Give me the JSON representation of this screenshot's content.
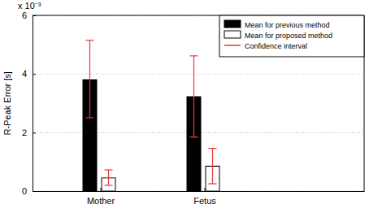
{
  "chart_data": {
    "type": "bar",
    "y_label": "R-Peak Error [s]",
    "annotations": [
      "x 10⁻³"
    ],
    "categories": [
      "Mother",
      "Fetus"
    ],
    "series": [
      {
        "name": "Mean for previous method",
        "color": "#000000",
        "values": [
          0.0038,
          0.00322
        ],
        "ci_lower": [
          0.0025,
          0.00185
        ],
        "ci_upper": [
          0.00515,
          0.00462
        ]
      },
      {
        "name": "Mean for proposed method",
        "color": "#ffffff",
        "values": [
          0.00045,
          0.00085
        ],
        "ci_lower": [
          0.0002,
          0.00025
        ],
        "ci_upper": [
          0.00072,
          0.00145
        ]
      }
    ],
    "confidence_interval": {
      "name": "Confidence interval",
      "color": "#e8383d"
    },
    "ylim": [
      0,
      0.006
    ],
    "yticks": [
      0,
      {
        "value": 0.002,
        "label": "2"
      },
      {
        "value": 0.004,
        "label": "4"
      },
      {
        "value": 0.006,
        "label": "6"
      }
    ],
    "grid": true,
    "legend": "upper right"
  }
}
